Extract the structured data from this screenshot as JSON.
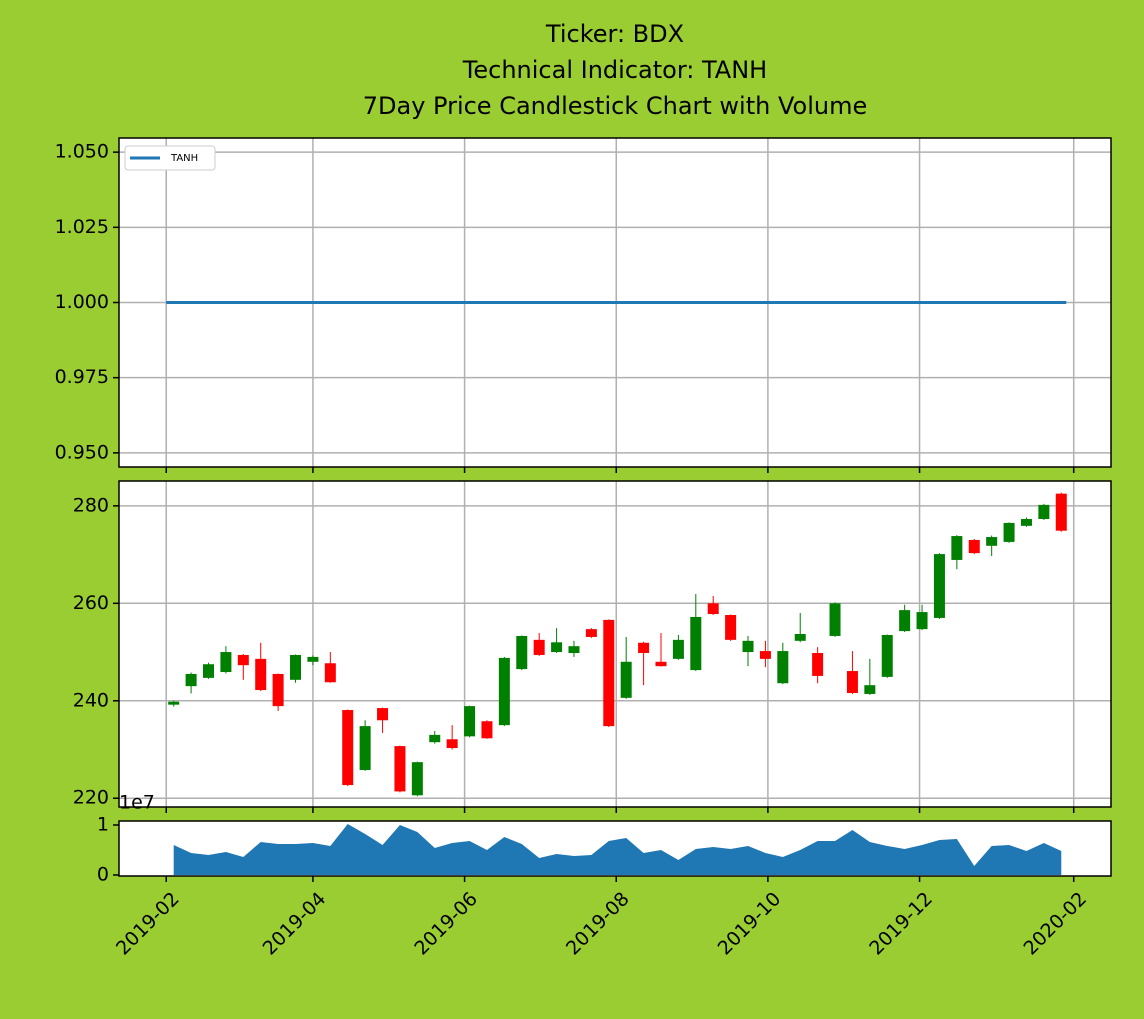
{
  "chart_data": [
    {
      "type": "line",
      "title": [
        "Ticker: BDX",
        "Technical Indicator: TANH",
        "7Day Price Candlestick Chart with Volume"
      ],
      "x": [
        "2019-02-01",
        "2020-01-29"
      ],
      "series": [
        {
          "name": "TANH",
          "color": "#1f77b4",
          "values": [
            1,
            1
          ]
        }
      ],
      "xlim": [
        "2019-01-13",
        "2020-02-16"
      ],
      "xticks": [
        "2019-02",
        "2019-04",
        "2019-06",
        "2019-08",
        "2019-10",
        "2019-12",
        "2020-02"
      ],
      "ylim": [
        0.9453,
        1.0547
      ],
      "yticks": [
        {
          "value": 0.95,
          "label": "0.950"
        },
        {
          "value": 0.975,
          "label": "0.975"
        },
        {
          "value": 1.0,
          "label": "1.000"
        },
        {
          "value": 1.025,
          "label": "1.025"
        },
        {
          "value": 1.05,
          "label": "1.050"
        }
      ],
      "grid": true,
      "legend": "upper left"
    },
    {
      "type": "candlestick",
      "x": [
        "2019-02-04",
        "2019-02-11",
        "2019-02-18",
        "2019-02-25",
        "2019-03-04",
        "2019-03-11",
        "2019-03-18",
        "2019-03-25",
        "2019-04-01",
        "2019-04-08",
        "2019-04-15",
        "2019-04-22",
        "2019-04-29",
        "2019-05-06",
        "2019-05-13",
        "2019-05-20",
        "2019-05-27",
        "2019-06-03",
        "2019-06-10",
        "2019-06-17",
        "2019-06-24",
        "2019-07-01",
        "2019-07-08",
        "2019-07-15",
        "2019-07-22",
        "2019-07-29",
        "2019-08-05",
        "2019-08-12",
        "2019-08-19",
        "2019-08-26",
        "2019-09-02",
        "2019-09-09",
        "2019-09-16",
        "2019-09-23",
        "2019-09-30",
        "2019-10-07",
        "2019-10-14",
        "2019-10-21",
        "2019-10-28",
        "2019-11-04",
        "2019-11-11",
        "2019-11-18",
        "2019-11-25",
        "2019-12-02",
        "2019-12-09",
        "2019-12-16",
        "2019-12-23",
        "2019-12-30",
        "2020-01-06",
        "2020-01-13",
        "2020-01-20",
        "2020-01-27"
      ],
      "open": [
        239.2,
        243,
        244.7,
        245.9,
        249.4,
        248.6,
        245.5,
        244.3,
        248,
        247.7,
        238.1,
        225.8,
        238.5,
        230.7,
        220.6,
        231.5,
        232.1,
        232.7,
        235.8,
        235,
        246.5,
        252.5,
        250,
        249.8,
        254.7,
        256.6,
        240.6,
        251.9,
        248,
        248.6,
        246.3,
        260,
        257.6,
        250,
        250.2,
        243.6,
        252.3,
        249.8,
        253.3,
        246.1,
        241.4,
        244.9,
        254.3,
        254.7,
        257,
        268.9,
        273,
        271.8,
        272.6,
        275.9,
        277.3,
        282.5
      ],
      "high": [
        240,
        245.8,
        247.8,
        251.2,
        249.6,
        251.9,
        245.6,
        249.5,
        249.3,
        250,
        238.2,
        236,
        238.6,
        230.8,
        227.5,
        233.8,
        235,
        239,
        236,
        249,
        253.4,
        253.9,
        254.9,
        252.3,
        254.9,
        256.7,
        253.1,
        252.1,
        253.9,
        253.5,
        261.9,
        261.5,
        257.7,
        253.3,
        252.3,
        251.9,
        258,
        251,
        260.2,
        250.2,
        248.6,
        253.6,
        259.7,
        259.7,
        270.3,
        274,
        273.2,
        273.9,
        276.6,
        277.6,
        280.4,
        282.7
      ],
      "low": [
        238.8,
        241.5,
        244.5,
        245.6,
        244.3,
        242,
        237.9,
        243.7,
        247.3,
        243.7,
        222.5,
        225.6,
        233.4,
        221.2,
        220.4,
        231.2,
        230,
        232.5,
        232.2,
        234.8,
        246.3,
        249.2,
        249.8,
        249,
        252.9,
        234.6,
        240.4,
        243.2,
        247,
        248.4,
        246.1,
        257.6,
        252.3,
        247.1,
        246.9,
        243.4,
        252,
        243.6,
        253.1,
        241.4,
        241.2,
        244.7,
        254.1,
        254.5,
        256.8,
        267,
        270.1,
        269.7,
        272.4,
        275.7,
        277.1,
        274.7
      ],
      "close": [
        239.8,
        245.5,
        247.5,
        250,
        247.3,
        242.2,
        238.9,
        249.4,
        249,
        243.8,
        222.7,
        234.8,
        236,
        221.4,
        227.4,
        233,
        230.3,
        238.9,
        232.3,
        248.8,
        253.3,
        249.4,
        252,
        251.2,
        253.1,
        234.8,
        248,
        249.8,
        247.1,
        252.5,
        257.2,
        257.8,
        252.5,
        252.3,
        248.6,
        250.2,
        253.7,
        245.1,
        260,
        241.6,
        243.2,
        253.5,
        258.6,
        258.2,
        270.1,
        273.8,
        270.3,
        273.6,
        276.5,
        277.3,
        280.2,
        274.9
      ],
      "up_color": "#008000",
      "down_color": "#ff0000",
      "xlim": [
        "2019-01-13",
        "2020-02-16"
      ],
      "xticks": [
        "2019-02",
        "2019-04",
        "2019-06",
        "2019-08",
        "2019-10",
        "2019-12",
        "2020-02"
      ],
      "ylim": [
        218.2,
        285.1
      ],
      "yticks": [
        220,
        240,
        260,
        280
      ],
      "grid": true
    },
    {
      "type": "area",
      "x": [
        "2019-02-04",
        "2019-02-11",
        "2019-02-18",
        "2019-02-25",
        "2019-03-04",
        "2019-03-11",
        "2019-03-18",
        "2019-03-25",
        "2019-04-01",
        "2019-04-08",
        "2019-04-15",
        "2019-04-22",
        "2019-04-29",
        "2019-05-06",
        "2019-05-13",
        "2019-05-20",
        "2019-05-27",
        "2019-06-03",
        "2019-06-10",
        "2019-06-17",
        "2019-06-24",
        "2019-07-01",
        "2019-07-08",
        "2019-07-15",
        "2019-07-22",
        "2019-07-29",
        "2019-08-05",
        "2019-08-12",
        "2019-08-19",
        "2019-08-26",
        "2019-09-02",
        "2019-09-09",
        "2019-09-16",
        "2019-09-23",
        "2019-09-30",
        "2019-10-07",
        "2019-10-14",
        "2019-10-21",
        "2019-10-28",
        "2019-11-04",
        "2019-11-11",
        "2019-11-18",
        "2019-11-25",
        "2019-12-02",
        "2019-12-09",
        "2019-12-16",
        "2019-12-23",
        "2019-12-30",
        "2020-01-06",
        "2020-01-13",
        "2020-01-20",
        "2020-01-27"
      ],
      "values": [
        0.6,
        0.44,
        0.4,
        0.46,
        0.36,
        0.66,
        0.62,
        0.62,
        0.64,
        0.58,
        1.02,
        0.82,
        0.6,
        1.0,
        0.86,
        0.54,
        0.64,
        0.68,
        0.5,
        0.76,
        0.62,
        0.34,
        0.42,
        0.38,
        0.4,
        0.68,
        0.74,
        0.44,
        0.5,
        0.3,
        0.52,
        0.56,
        0.52,
        0.58,
        0.44,
        0.36,
        0.5,
        0.68,
        0.68,
        0.9,
        0.66,
        0.58,
        0.52,
        0.6,
        0.7,
        0.72,
        0.18,
        0.58,
        0.6,
        0.48,
        0.64,
        0.48
      ],
      "color": "#1f77b4",
      "offset_text": "1e7",
      "xlim": [
        "2019-01-13",
        "2020-02-16"
      ],
      "xticks": [
        "2019-02",
        "2019-04",
        "2019-06",
        "2019-08",
        "2019-10",
        "2019-12",
        "2020-02"
      ],
      "ylim": [
        -0.02,
        1.08
      ],
      "yticks": [
        0,
        1
      ],
      "grid": false
    }
  ]
}
